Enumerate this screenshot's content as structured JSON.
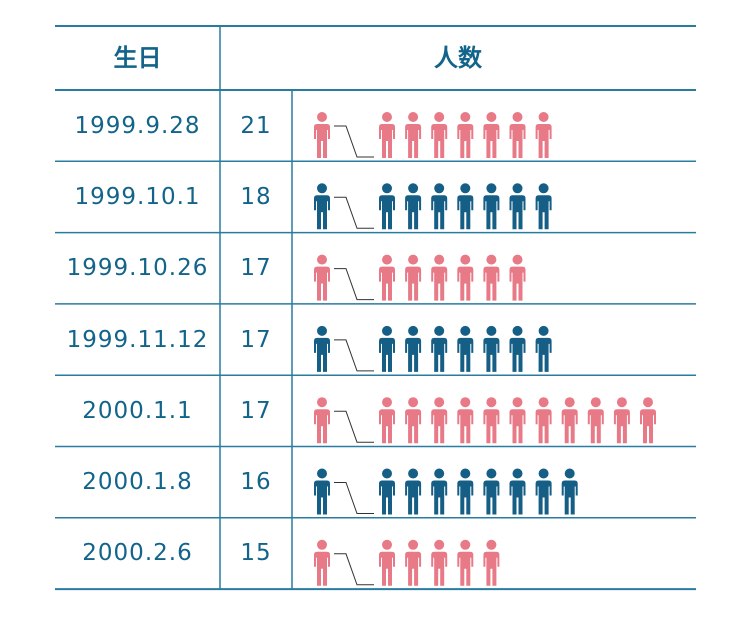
{
  "colors": {
    "line": "#2a7ba0",
    "text": "#12648a",
    "pink": "#e87a88",
    "blue": "#155f86"
  },
  "icons": {
    "person": "person-icon"
  },
  "chart_data": {
    "type": "table",
    "headers": {
      "birthday": "生日",
      "count": "人数"
    },
    "rows": [
      {
        "birthday": "1999.9.28",
        "count": "21",
        "color": "pink",
        "icons": 8
      },
      {
        "birthday": "1999.10.1",
        "count": "18",
        "color": "blue",
        "icons": 8
      },
      {
        "birthday": "1999.10.26",
        "count": "17",
        "color": "pink",
        "icons": 7
      },
      {
        "birthday": "1999.11.12",
        "count": "17",
        "color": "blue",
        "icons": 8
      },
      {
        "birthday": "2000.1.1",
        "count": "17",
        "color": "pink",
        "icons": 12
      },
      {
        "birthday": "2000.1.8",
        "count": "16",
        "color": "blue",
        "icons": 9
      },
      {
        "birthday": "2000.2.6",
        "count": "15",
        "color": "pink",
        "icons": 6
      }
    ]
  }
}
